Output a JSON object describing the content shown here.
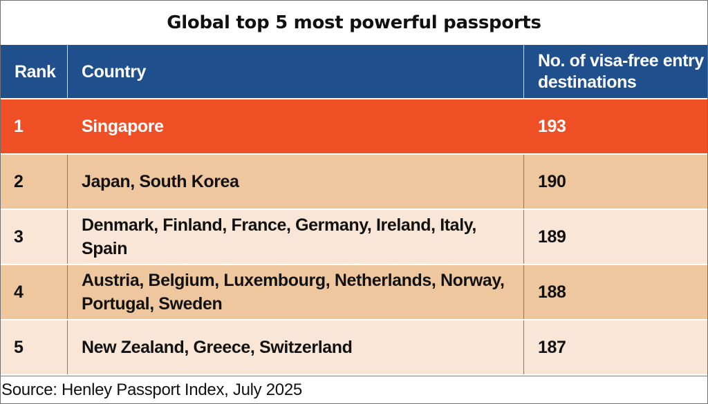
{
  "chart_data": {
    "type": "table",
    "title": "Global top 5 most powerful passports",
    "columns": [
      "Rank",
      "Country",
      "No. of visa-free entry destinations"
    ],
    "rows": [
      {
        "rank": "1",
        "country": "Singapore",
        "value": "193"
      },
      {
        "rank": "2",
        "country": "Japan, South Korea",
        "value": "190"
      },
      {
        "rank": "3",
        "country": "Denmark, Finland, France, Germany, Ireland, Italy, Spain",
        "value": "189"
      },
      {
        "rank": "4",
        "country": "Austria, Belgium, Luxembourg, Netherlands, Norway, Portugal, Sweden",
        "value": "188"
      },
      {
        "rank": "5",
        "country": "New Zealand, Greece, Switzerland",
        "value": "187"
      }
    ],
    "source": "Source: Henley Passport Index, July 2025"
  },
  "colors": {
    "header_blue": "#1f4f8c",
    "highlight_orange": "#ef4f24",
    "tan": "#efc79f",
    "light_tan": "#f9e6d6"
  }
}
